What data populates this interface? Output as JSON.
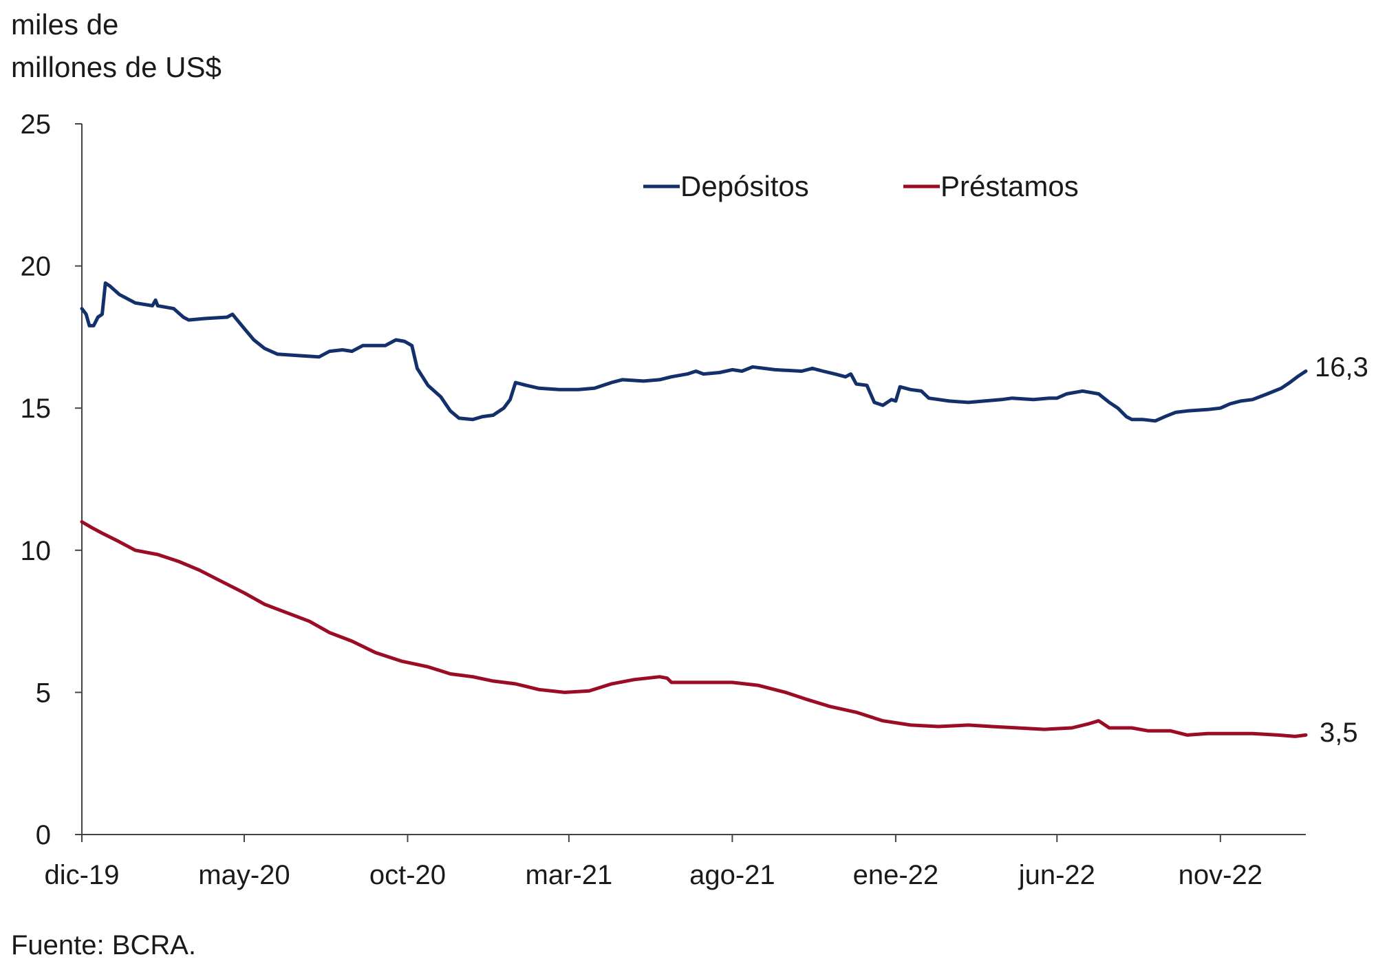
{
  "chart_data": {
    "type": "line",
    "ylabel_line1": "miles de",
    "ylabel_line2": "millones de US$",
    "source": "Fuente: BCRA.",
    "ylim": [
      0,
      25
    ],
    "yticks": [
      "0",
      "5",
      "10",
      "15",
      "20",
      "25"
    ],
    "xlim": [
      "2019-12-01",
      "2023-01-20"
    ],
    "xticks": [
      {
        "date": "2019-12-01",
        "label": "dic-19"
      },
      {
        "date": "2020-05-01",
        "label": "may-20"
      },
      {
        "date": "2020-10-01",
        "label": "oct-20"
      },
      {
        "date": "2021-03-01",
        "label": "mar-21"
      },
      {
        "date": "2021-08-01",
        "label": "ago-21"
      },
      {
        "date": "2022-01-01",
        "label": "ene-22"
      },
      {
        "date": "2022-06-01",
        "label": "jun-22"
      },
      {
        "date": "2022-11-01",
        "label": "nov-22"
      }
    ],
    "legend_placement": "top-center",
    "grid": false,
    "series": [
      {
        "name": "Depósitos",
        "color": "#13306b",
        "end_label": "16,3",
        "points": [
          [
            "2019-12-01",
            18.5
          ],
          [
            "2019-12-05",
            18.3
          ],
          [
            "2019-12-08",
            17.9
          ],
          [
            "2019-12-12",
            17.9
          ],
          [
            "2019-12-16",
            18.2
          ],
          [
            "2019-12-20",
            18.3
          ],
          [
            "2019-12-23",
            19.4
          ],
          [
            "2019-12-27",
            19.3
          ],
          [
            "2020-01-05",
            19.0
          ],
          [
            "2020-01-20",
            18.7
          ],
          [
            "2020-02-05",
            18.6
          ],
          [
            "2020-02-08",
            18.8
          ],
          [
            "2020-02-10",
            18.6
          ],
          [
            "2020-02-25",
            18.5
          ],
          [
            "2020-03-05",
            18.2
          ],
          [
            "2020-03-10",
            18.1
          ],
          [
            "2020-03-25",
            18.15
          ],
          [
            "2020-04-15",
            18.2
          ],
          [
            "2020-04-20",
            18.3
          ],
          [
            "2020-05-01",
            17.8
          ],
          [
            "2020-05-10",
            17.4
          ],
          [
            "2020-05-20",
            17.1
          ],
          [
            "2020-06-01",
            16.9
          ],
          [
            "2020-06-20",
            16.85
          ],
          [
            "2020-07-10",
            16.8
          ],
          [
            "2020-07-20",
            17.0
          ],
          [
            "2020-08-01",
            17.05
          ],
          [
            "2020-08-10",
            17.0
          ],
          [
            "2020-08-20",
            17.2
          ],
          [
            "2020-09-10",
            17.2
          ],
          [
            "2020-09-20",
            17.4
          ],
          [
            "2020-09-28",
            17.35
          ],
          [
            "2020-10-05",
            17.2
          ],
          [
            "2020-10-10",
            16.4
          ],
          [
            "2020-10-20",
            15.8
          ],
          [
            "2020-11-01",
            15.4
          ],
          [
            "2020-11-10",
            14.9
          ],
          [
            "2020-11-18",
            14.65
          ],
          [
            "2020-12-01",
            14.6
          ],
          [
            "2020-12-10",
            14.7
          ],
          [
            "2020-12-20",
            14.75
          ],
          [
            "2020-12-30",
            15.0
          ],
          [
            "2021-01-05",
            15.3
          ],
          [
            "2021-01-10",
            15.9
          ],
          [
            "2021-01-20",
            15.8
          ],
          [
            "2021-02-01",
            15.7
          ],
          [
            "2021-02-20",
            15.65
          ],
          [
            "2021-03-10",
            15.65
          ],
          [
            "2021-03-25",
            15.7
          ],
          [
            "2021-04-10",
            15.9
          ],
          [
            "2021-04-20",
            16.0
          ],
          [
            "2021-05-10",
            15.95
          ],
          [
            "2021-05-25",
            16.0
          ],
          [
            "2021-06-05",
            16.1
          ],
          [
            "2021-06-20",
            16.2
          ],
          [
            "2021-06-28",
            16.3
          ],
          [
            "2021-07-05",
            16.2
          ],
          [
            "2021-07-20",
            16.25
          ],
          [
            "2021-08-01",
            16.35
          ],
          [
            "2021-08-10",
            16.3
          ],
          [
            "2021-08-20",
            16.45
          ],
          [
            "2021-09-10",
            16.35
          ],
          [
            "2021-10-05",
            16.3
          ],
          [
            "2021-10-15",
            16.4
          ],
          [
            "2021-10-25",
            16.3
          ],
          [
            "2021-11-05",
            16.2
          ],
          [
            "2021-11-15",
            16.1
          ],
          [
            "2021-11-20",
            16.2
          ],
          [
            "2021-11-25",
            15.85
          ],
          [
            "2021-12-05",
            15.8
          ],
          [
            "2021-12-12",
            15.2
          ],
          [
            "2021-12-20",
            15.1
          ],
          [
            "2021-12-28",
            15.3
          ],
          [
            "2022-01-01",
            15.25
          ],
          [
            "2022-01-05",
            15.75
          ],
          [
            "2022-01-15",
            15.65
          ],
          [
            "2022-01-25",
            15.6
          ],
          [
            "2022-02-01",
            15.35
          ],
          [
            "2022-02-20",
            15.25
          ],
          [
            "2022-03-10",
            15.2
          ],
          [
            "2022-03-25",
            15.25
          ],
          [
            "2022-04-10",
            15.3
          ],
          [
            "2022-04-20",
            15.35
          ],
          [
            "2022-05-10",
            15.3
          ],
          [
            "2022-05-25",
            15.35
          ],
          [
            "2022-06-01",
            15.35
          ],
          [
            "2022-06-10",
            15.5
          ],
          [
            "2022-06-25",
            15.6
          ],
          [
            "2022-07-10",
            15.5
          ],
          [
            "2022-07-20",
            15.2
          ],
          [
            "2022-07-28",
            15.0
          ],
          [
            "2022-08-05",
            14.7
          ],
          [
            "2022-08-10",
            14.6
          ],
          [
            "2022-08-20",
            14.6
          ],
          [
            "2022-09-01",
            14.55
          ],
          [
            "2022-09-10",
            14.7
          ],
          [
            "2022-09-20",
            14.85
          ],
          [
            "2022-10-01",
            14.9
          ],
          [
            "2022-10-20",
            14.95
          ],
          [
            "2022-11-01",
            15.0
          ],
          [
            "2022-11-10",
            15.15
          ],
          [
            "2022-11-20",
            15.25
          ],
          [
            "2022-12-01",
            15.3
          ],
          [
            "2022-12-15",
            15.5
          ],
          [
            "2022-12-28",
            15.7
          ],
          [
            "2023-01-05",
            15.9
          ],
          [
            "2023-01-12",
            16.1
          ],
          [
            "2023-01-20",
            16.3
          ]
        ]
      },
      {
        "name": "Préstamos",
        "color": "#9b0d24",
        "end_label": "3,5",
        "points": [
          [
            "2019-12-01",
            11.0
          ],
          [
            "2019-12-10",
            10.8
          ],
          [
            "2019-12-20",
            10.6
          ],
          [
            "2020-01-05",
            10.3
          ],
          [
            "2020-01-20",
            10.0
          ],
          [
            "2020-02-10",
            9.85
          ],
          [
            "2020-03-01",
            9.6
          ],
          [
            "2020-03-20",
            9.3
          ],
          [
            "2020-04-10",
            8.9
          ],
          [
            "2020-05-01",
            8.5
          ],
          [
            "2020-05-20",
            8.1
          ],
          [
            "2020-06-10",
            7.8
          ],
          [
            "2020-07-01",
            7.5
          ],
          [
            "2020-07-20",
            7.1
          ],
          [
            "2020-08-10",
            6.8
          ],
          [
            "2020-09-01",
            6.4
          ],
          [
            "2020-09-25",
            6.1
          ],
          [
            "2020-10-20",
            5.9
          ],
          [
            "2020-11-10",
            5.65
          ],
          [
            "2020-12-01",
            5.55
          ],
          [
            "2020-12-20",
            5.4
          ],
          [
            "2021-01-10",
            5.3
          ],
          [
            "2021-02-01",
            5.1
          ],
          [
            "2021-02-25",
            5.0
          ],
          [
            "2021-03-20",
            5.05
          ],
          [
            "2021-04-10",
            5.3
          ],
          [
            "2021-05-01",
            5.45
          ],
          [
            "2021-05-25",
            5.55
          ],
          [
            "2021-06-01",
            5.5
          ],
          [
            "2021-06-05",
            5.35
          ],
          [
            "2021-07-01",
            5.35
          ],
          [
            "2021-08-01",
            5.35
          ],
          [
            "2021-08-25",
            5.25
          ],
          [
            "2021-09-20",
            5.0
          ],
          [
            "2021-10-10",
            4.75
          ],
          [
            "2021-11-01",
            4.5
          ],
          [
            "2021-11-25",
            4.3
          ],
          [
            "2021-12-20",
            4.0
          ],
          [
            "2022-01-15",
            3.85
          ],
          [
            "2022-02-10",
            3.8
          ],
          [
            "2022-03-10",
            3.85
          ],
          [
            "2022-04-01",
            3.8
          ],
          [
            "2022-04-25",
            3.75
          ],
          [
            "2022-05-20",
            3.7
          ],
          [
            "2022-06-15",
            3.75
          ],
          [
            "2022-07-01",
            3.9
          ],
          [
            "2022-07-10",
            4.0
          ],
          [
            "2022-07-20",
            3.75
          ],
          [
            "2022-08-10",
            3.75
          ],
          [
            "2022-08-25",
            3.65
          ],
          [
            "2022-09-15",
            3.65
          ],
          [
            "2022-10-01",
            3.5
          ],
          [
            "2022-10-20",
            3.55
          ],
          [
            "2022-11-10",
            3.55
          ],
          [
            "2022-12-01",
            3.55
          ],
          [
            "2022-12-25",
            3.5
          ],
          [
            "2023-01-10",
            3.45
          ],
          [
            "2023-01-20",
            3.5
          ]
        ]
      }
    ]
  }
}
